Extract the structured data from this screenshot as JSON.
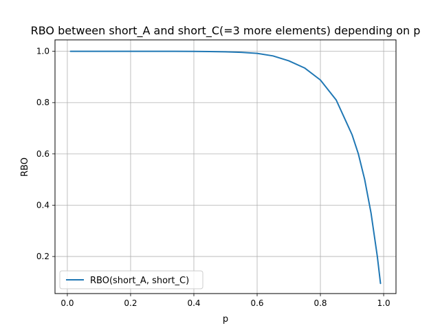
{
  "chart_data": {
    "type": "line",
    "title": "RBO between short_A and short_C(=3 more elements) depending on p",
    "xlabel": "p",
    "ylabel": "RBO",
    "xlim": [
      -0.039,
      1.039
    ],
    "ylim": [
      0.0555,
      1.0445
    ],
    "xticks": [
      0.0,
      0.2,
      0.4,
      0.6,
      0.8,
      1.0
    ],
    "xtick_labels": [
      "0.0",
      "0.2",
      "0.4",
      "0.6",
      "0.8",
      "1.0"
    ],
    "yticks": [
      0.2,
      0.4,
      0.6,
      0.8,
      1.0
    ],
    "ytick_labels": [
      "0.2",
      "0.4",
      "0.6",
      "0.8",
      "1.0"
    ],
    "grid": true,
    "legend_position": "lower-left",
    "series": [
      {
        "name": "RBO(short_A, short_C)",
        "color": "#1f77b4",
        "x": [
          0.01,
          0.1,
          0.2,
          0.3,
          0.4,
          0.45,
          0.5,
          0.55,
          0.6,
          0.65,
          0.7,
          0.75,
          0.8,
          0.85,
          0.9,
          0.92,
          0.94,
          0.96,
          0.98,
          0.99
        ],
        "y": [
          1.0,
          1.0,
          1.0,
          1.0,
          0.9995,
          0.999,
          0.998,
          0.996,
          0.992,
          0.982,
          0.963,
          0.935,
          0.888,
          0.81,
          0.675,
          0.6,
          0.5,
          0.37,
          0.2,
          0.095
        ]
      }
    ]
  }
}
